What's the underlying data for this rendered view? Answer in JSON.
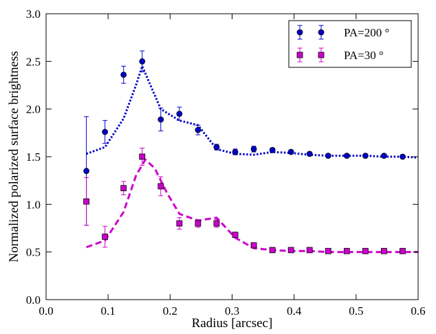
{
  "chart_data": {
    "type": "scatter",
    "xlabel": "Radius [arcsec]",
    "ylabel": "Normalized polarized surface brightness",
    "xlim": [
      0.0,
      0.6
    ],
    "ylim": [
      0.0,
      3.0
    ],
    "xticks": [
      "0.0",
      "0.1",
      "0.2",
      "0.3",
      "0.4",
      "0.5",
      "0.6"
    ],
    "yticks": [
      "0.0",
      "0.5",
      "1.0",
      "1.5",
      "2.0",
      "2.5",
      "3.0"
    ],
    "grid": false,
    "legend_position": "top-right",
    "series": [
      {
        "name": "PA=200 °",
        "color": "#0000cc",
        "marker": "circle",
        "points": [
          {
            "x": 0.065,
            "y": 1.35,
            "err": 0.57
          },
          {
            "x": 0.095,
            "y": 1.76,
            "err": 0.12
          },
          {
            "x": 0.125,
            "y": 2.36,
            "err": 0.09
          },
          {
            "x": 0.155,
            "y": 2.5,
            "err": 0.11
          },
          {
            "x": 0.185,
            "y": 1.89,
            "err": 0.12
          },
          {
            "x": 0.215,
            "y": 1.95,
            "err": 0.07
          },
          {
            "x": 0.245,
            "y": 1.78,
            "err": 0.05
          },
          {
            "x": 0.275,
            "y": 1.6,
            "err": 0.03
          },
          {
            "x": 0.305,
            "y": 1.55,
            "err": 0.03
          },
          {
            "x": 0.335,
            "y": 1.58,
            "err": 0.03
          },
          {
            "x": 0.365,
            "y": 1.57,
            "err": 0.02
          },
          {
            "x": 0.395,
            "y": 1.55,
            "err": 0.02
          },
          {
            "x": 0.425,
            "y": 1.53,
            "err": 0.015
          },
          {
            "x": 0.455,
            "y": 1.51,
            "err": 0.015
          },
          {
            "x": 0.485,
            "y": 1.51,
            "err": 0.01
          },
          {
            "x": 0.515,
            "y": 1.51,
            "err": 0.01
          },
          {
            "x": 0.545,
            "y": 1.51,
            "err": 0.01
          },
          {
            "x": 0.575,
            "y": 1.5,
            "err": 0.01
          }
        ],
        "model": {
          "style": "dotted",
          "x": [
            0.065,
            0.095,
            0.125,
            0.145,
            0.155,
            0.165,
            0.185,
            0.215,
            0.245,
            0.275,
            0.305,
            0.335,
            0.365,
            0.395,
            0.425,
            0.455,
            0.485,
            0.515,
            0.545,
            0.575,
            0.6
          ],
          "y": [
            1.53,
            1.6,
            1.9,
            2.25,
            2.45,
            2.3,
            2.0,
            1.88,
            1.83,
            1.58,
            1.53,
            1.52,
            1.55,
            1.54,
            1.52,
            1.51,
            1.51,
            1.51,
            1.5,
            1.5,
            1.49
          ]
        }
      },
      {
        "name": "PA=30 °",
        "color": "#cc00cc",
        "marker": "square",
        "points": [
          {
            "x": 0.065,
            "y": 1.03,
            "err": 0.25
          },
          {
            "x": 0.095,
            "y": 0.66,
            "err": 0.11
          },
          {
            "x": 0.125,
            "y": 1.17,
            "err": 0.07
          },
          {
            "x": 0.155,
            "y": 1.5,
            "err": 0.09
          },
          {
            "x": 0.185,
            "y": 1.19,
            "err": 0.1
          },
          {
            "x": 0.215,
            "y": 0.8,
            "err": 0.06
          },
          {
            "x": 0.245,
            "y": 0.8,
            "err": 0.04
          },
          {
            "x": 0.275,
            "y": 0.8,
            "err": 0.04
          },
          {
            "x": 0.305,
            "y": 0.68,
            "err": 0.025
          },
          {
            "x": 0.335,
            "y": 0.57,
            "err": 0.02
          },
          {
            "x": 0.365,
            "y": 0.52,
            "err": 0.015
          },
          {
            "x": 0.395,
            "y": 0.52,
            "err": 0.015
          },
          {
            "x": 0.425,
            "y": 0.52,
            "err": 0.015
          },
          {
            "x": 0.455,
            "y": 0.51,
            "err": 0.01
          },
          {
            "x": 0.485,
            "y": 0.51,
            "err": 0.01
          },
          {
            "x": 0.515,
            "y": 0.51,
            "err": 0.01
          },
          {
            "x": 0.545,
            "y": 0.51,
            "err": 0.01
          },
          {
            "x": 0.575,
            "y": 0.51,
            "err": 0.01
          }
        ],
        "model": {
          "style": "dashed",
          "x": [
            0.065,
            0.095,
            0.125,
            0.145,
            0.16,
            0.175,
            0.195,
            0.215,
            0.245,
            0.275,
            0.305,
            0.335,
            0.365,
            0.395,
            0.425,
            0.455,
            0.485,
            0.515,
            0.545,
            0.575,
            0.6
          ],
          "y": [
            0.55,
            0.62,
            0.92,
            1.3,
            1.47,
            1.38,
            1.12,
            0.9,
            0.83,
            0.86,
            0.65,
            0.54,
            0.52,
            0.51,
            0.51,
            0.5,
            0.5,
            0.5,
            0.5,
            0.5,
            0.5
          ]
        }
      }
    ]
  }
}
